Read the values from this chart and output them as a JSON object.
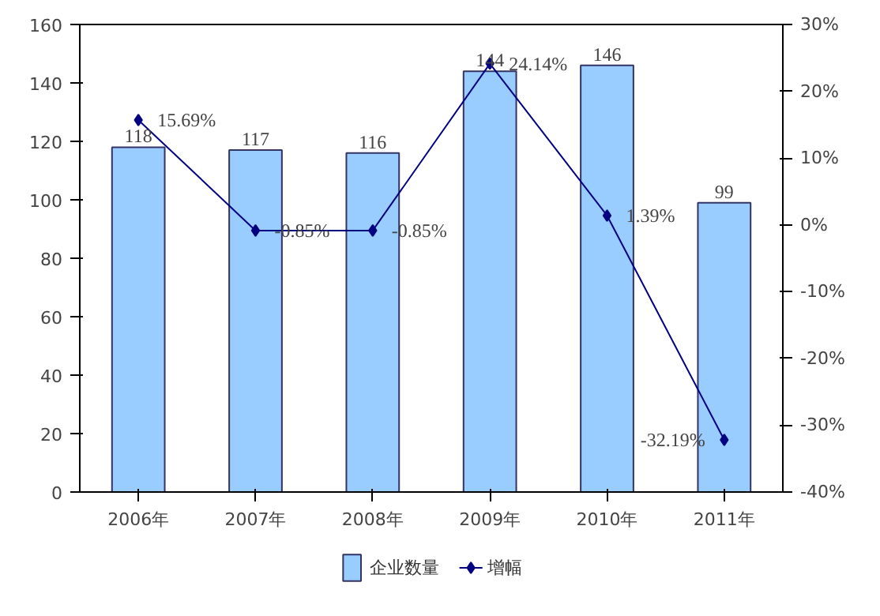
{
  "chart_data": {
    "type": "bar",
    "categories": [
      "2006年",
      "2007年",
      "2008年",
      "2009年",
      "2010年",
      "2011年"
    ],
    "series": [
      {
        "name": "企业数量",
        "type": "bar",
        "color": "#99ccff",
        "values": [
          118,
          117,
          116,
          144,
          146,
          99
        ],
        "value_labels": [
          "118",
          "117",
          "116",
          "144",
          "146",
          "99"
        ]
      },
      {
        "name": "增幅",
        "type": "line",
        "axis": "y2",
        "color": "#000080",
        "marker": "diamond",
        "values": [
          15.69,
          -0.85,
          -0.85,
          24.14,
          1.39,
          -32.19
        ],
        "value_labels": [
          "15.69%",
          "-0.85%",
          "-0.85%",
          "24.14%",
          "1.39%",
          "-32.19%"
        ]
      }
    ],
    "ylim": [
      0,
      160
    ],
    "yticks": [
      0,
      20,
      40,
      60,
      80,
      100,
      120,
      140,
      160
    ],
    "y2lim": [
      -40,
      30
    ],
    "y2ticks": [
      {
        "value": -40,
        "label": "-40%"
      },
      {
        "value": -30,
        "label": "-30%"
      },
      {
        "value": -20,
        "label": "-20%"
      },
      {
        "value": -10,
        "label": "-10%"
      },
      {
        "value": 0,
        "label": "0%"
      },
      {
        "value": 10,
        "label": "10%"
      },
      {
        "value": 20,
        "label": "20%"
      },
      {
        "value": 30,
        "label": "30%"
      }
    ],
    "grid": false,
    "legend": "bottom"
  }
}
